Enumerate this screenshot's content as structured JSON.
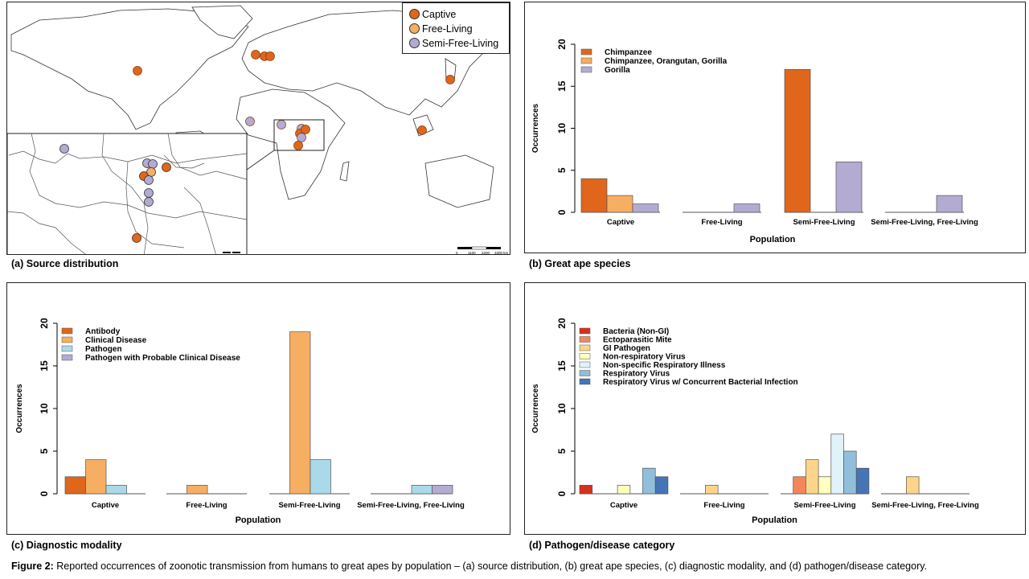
{
  "figure": {
    "label": "Figure 2:",
    "caption": "Reported occurrences of zoonotic transmission from humans to great apes by population – (a) source distribution, (b) great ape species, (c) diagnostic modality, and (d) pathogen/disease category."
  },
  "panels": {
    "a": {
      "caption": "(a) Source distribution",
      "legend": [
        {
          "label": "Captive",
          "color": "#E0661B"
        },
        {
          "label": "Free-Living",
          "color": "#F6AE62"
        },
        {
          "label": "Semi-Free-Living",
          "color": "#B3ABD2"
        }
      ],
      "scale_labels": [
        "0",
        "1100",
        "2200",
        "3300 km"
      ]
    },
    "b": {
      "caption": "(b) Great ape species"
    },
    "c": {
      "caption": "(c) Diagnostic modality"
    },
    "d": {
      "caption": "(d) Pathogen/disease category"
    }
  },
  "chart_data": [
    {
      "id": "b",
      "type": "bar",
      "xlabel": "Population",
      "ylabel": "Occurrences",
      "ylim": [
        0,
        20
      ],
      "yticks": [
        0,
        5,
        10,
        15,
        20
      ],
      "categories": [
        "Captive",
        "Free-Living",
        "Semi-Free-Living",
        "Semi-Free-Living, Free-Living"
      ],
      "series": [
        {
          "name": "Chimpanzee",
          "color": "#E0661B",
          "values": [
            4,
            0,
            17,
            0
          ]
        },
        {
          "name": "Chimpanzee, Orangutan, Gorilla",
          "color": "#F6AE62",
          "values": [
            2,
            0,
            0,
            0
          ]
        },
        {
          "name": "Gorilla",
          "color": "#B3ABD2",
          "values": [
            1,
            1,
            6,
            2
          ]
        }
      ],
      "legend_position": "top-left"
    },
    {
      "id": "c",
      "type": "bar",
      "xlabel": "Population",
      "ylabel": "Occurrences",
      "ylim": [
        0,
        20
      ],
      "yticks": [
        0,
        5,
        10,
        15,
        20
      ],
      "categories": [
        "Captive",
        "Free-Living",
        "Semi-Free-Living",
        "Semi-Free-Living, Free-Living"
      ],
      "series": [
        {
          "name": "Antibody",
          "color": "#E0661B",
          "values": [
            2,
            0,
            0,
            0
          ]
        },
        {
          "name": "Clinical Disease",
          "color": "#F6AE62",
          "values": [
            4,
            1,
            19,
            0
          ]
        },
        {
          "name": "Pathogen",
          "color": "#ABD9E9",
          "values": [
            1,
            0,
            4,
            1
          ]
        },
        {
          "name": "Pathogen with Probable Clinical Disease",
          "color": "#B3ABD2",
          "values": [
            0,
            0,
            0,
            1
          ]
        }
      ],
      "legend_position": "top-left"
    },
    {
      "id": "d",
      "type": "bar",
      "xlabel": "Population",
      "ylabel": "Occurrences",
      "ylim": [
        0,
        20
      ],
      "yticks": [
        0,
        5,
        10,
        15,
        20
      ],
      "categories": [
        "Captive",
        "Free-Living",
        "Semi-Free-Living",
        "Semi-Free-Living, Free-Living"
      ],
      "series": [
        {
          "name": "Bacteria (Non-GI)",
          "color": "#D7301F",
          "values": [
            1,
            0,
            0,
            0
          ]
        },
        {
          "name": "Ectoparasitic Mite",
          "color": "#F4865B",
          "values": [
            0,
            0,
            2,
            0
          ]
        },
        {
          "name": "GI Pathogen",
          "color": "#FDD58A",
          "values": [
            0,
            1,
            4,
            2
          ]
        },
        {
          "name": "Non-respiratory Virus",
          "color": "#FFFFBF",
          "values": [
            1,
            0,
            2,
            0
          ]
        },
        {
          "name": "Non-specific Respiratory Illness",
          "color": "#E0F3F8",
          "values": [
            0,
            0,
            7,
            0
          ]
        },
        {
          "name": "Respiratory Virus",
          "color": "#91BFDB",
          "values": [
            3,
            0,
            5,
            0
          ]
        },
        {
          "name": "Respiratory Virus w/ Concurrent Bacterial Infection",
          "color": "#4575B4",
          "values": [
            2,
            0,
            3,
            0
          ]
        }
      ],
      "legend_position": "top-left"
    }
  ]
}
